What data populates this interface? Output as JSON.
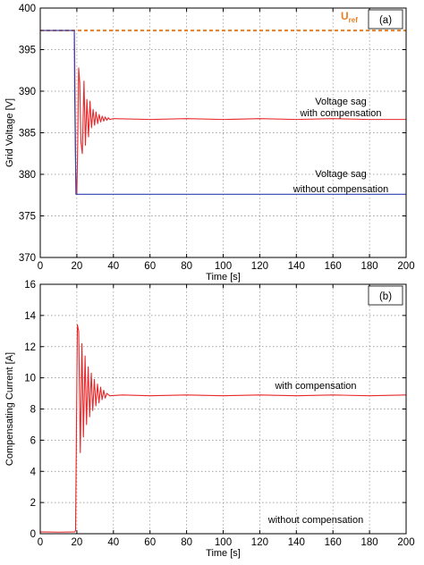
{
  "chart_data": [
    {
      "type": "line",
      "panel_label": "(a)",
      "xlabel": "Time [s]",
      "ylabel": "Grid Voltage [V]",
      "xlim": [
        0,
        200
      ],
      "ylim": [
        370,
        400
      ],
      "xticks": [
        "0",
        "20",
        "40",
        "60",
        "80",
        "100",
        "120",
        "140",
        "160",
        "180",
        "200"
      ],
      "yticks": [
        "370",
        "375",
        "380",
        "385",
        "390",
        "395",
        "400"
      ],
      "grid": true,
      "reference": {
        "label": "U",
        "subscript": "ref",
        "value": 397.3,
        "color": "#e67e22"
      },
      "series": [
        {
          "color": "#e8282a",
          "x": [
            0,
            18.6,
            18.8,
            19.4,
            20.0,
            20.5,
            21.0,
            21.6,
            22.2,
            23.0,
            23.9,
            24.7,
            25.5,
            26.4,
            27.2,
            28.0,
            28.9,
            29.7,
            30.5,
            31.4,
            32.2,
            33.0,
            33.9,
            34.7,
            35.5,
            36.4,
            37.2,
            38.0,
            40,
            60,
            80,
            100,
            120,
            140,
            160,
            180,
            200
          ],
          "y": [
            397.3,
            397.3,
            394.5,
            380.0,
            377.6,
            384.0,
            392.8,
            391.0,
            384.0,
            382.5,
            391.2,
            383.5,
            389.0,
            384.5,
            388.8,
            385.6,
            387.8,
            385.9,
            387.5,
            386.1,
            387.2,
            386.3,
            387.0,
            386.4,
            386.9,
            386.5,
            386.8,
            386.6,
            386.7,
            386.6,
            386.7,
            386.6,
            386.7,
            386.6,
            386.7,
            386.6,
            386.6
          ],
          "annotation": [
            "Voltage sag",
            "with compensation"
          ]
        },
        {
          "color": "#3040b0",
          "x": [
            0,
            18.6,
            18.8,
            19.5,
            200
          ],
          "y": [
            397.3,
            397.3,
            390.0,
            377.6,
            377.6
          ],
          "annotation": [
            "Voltage sag",
            "without compensation"
          ]
        }
      ]
    },
    {
      "type": "line",
      "panel_label": "(b)",
      "xlabel": "Time [s]",
      "ylabel": "Compensating Current [A]",
      "xlim": [
        0,
        200
      ],
      "ylim": [
        0,
        16
      ],
      "xticks": [
        "0",
        "20",
        "40",
        "60",
        "80",
        "100",
        "120",
        "140",
        "160",
        "180",
        "200"
      ],
      "yticks": [
        "0",
        "2",
        "4",
        "6",
        "8",
        "10",
        "12",
        "14",
        "16"
      ],
      "grid": true,
      "series": [
        {
          "color": "#e8282a",
          "x": [
            0,
            10,
            18.8,
            19.3,
            20.3,
            21.0,
            21.9,
            22.8,
            23.6,
            24.5,
            25.3,
            26.2,
            27.0,
            27.9,
            28.7,
            29.6,
            30.4,
            31.3,
            32.1,
            33.0,
            33.8,
            34.7,
            35.5,
            36.4,
            38,
            45,
            60,
            80,
            100,
            120,
            140,
            160,
            180,
            200
          ],
          "y": [
            0.12,
            0.1,
            0.12,
            0.2,
            13.4,
            13.0,
            5.2,
            12.2,
            6.2,
            11.4,
            7.0,
            10.7,
            7.5,
            10.3,
            7.9,
            9.9,
            8.2,
            9.6,
            8.4,
            9.4,
            8.6,
            9.2,
            8.7,
            9.0,
            8.85,
            8.9,
            8.85,
            8.9,
            8.85,
            8.9,
            8.85,
            8.9,
            8.85,
            8.9
          ],
          "annotation": [
            "with compensation"
          ]
        },
        {
          "color": "#3040b0",
          "x": [
            0,
            200
          ],
          "y": [
            0,
            0
          ],
          "annotation": [
            "without compensation"
          ]
        }
      ]
    }
  ]
}
